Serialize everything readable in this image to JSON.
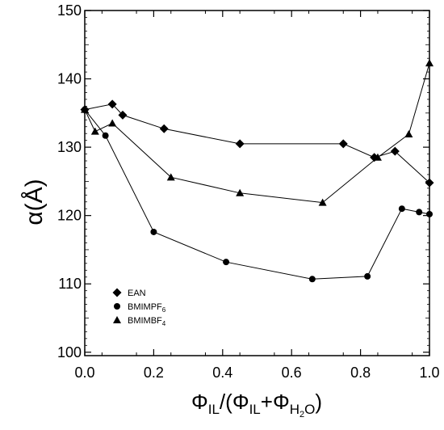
{
  "chart_data": {
    "type": "line",
    "title": "",
    "ylabel": "α(Å)",
    "xlabel_parts": {
      "phi": "Φ",
      "il": "IL",
      "open": "/(",
      "plus": "+",
      "h2o_h": "H",
      "h2o_2": "2",
      "h2o_o": "O",
      "close": ")"
    },
    "xlim": [
      0.0,
      1.0
    ],
    "ylim": [
      99.5,
      150
    ],
    "x_ticks": [
      "0.0",
      "0.2",
      "0.4",
      "0.6",
      "0.8",
      "1.0"
    ],
    "x_tick_values": [
      0.0,
      0.2,
      0.4,
      0.6,
      0.8,
      1.0
    ],
    "y_ticks": [
      "100",
      "110",
      "120",
      "130",
      "140",
      "150"
    ],
    "y_tick_values": [
      100,
      110,
      120,
      130,
      140,
      150
    ],
    "grid": false,
    "legend_position": "bottom-left",
    "series": [
      {
        "name": "EAN",
        "name_main": "EAN",
        "name_sub": "",
        "marker": "diamond",
        "x": [
          0.0,
          0.08,
          0.11,
          0.23,
          0.45,
          0.75,
          0.84,
          0.9,
          1.0
        ],
        "y": [
          135.5,
          136.3,
          134.7,
          132.7,
          130.5,
          130.5,
          128.5,
          129.4,
          124.8
        ]
      },
      {
        "name": "BMIMPF6",
        "name_main": "BMIMPF",
        "name_sub": "6",
        "marker": "circle",
        "x": [
          0.0,
          0.06,
          0.2,
          0.41,
          0.66,
          0.82,
          0.92,
          0.97,
          1.0
        ],
        "y": [
          135.5,
          131.7,
          117.6,
          113.2,
          110.7,
          111.1,
          121.0,
          120.5,
          120.2
        ]
      },
      {
        "name": "BMIMBF4",
        "name_main": "BMIMBF",
        "name_sub": "4",
        "marker": "triangle",
        "x": [
          0.0,
          0.03,
          0.08,
          0.25,
          0.45,
          0.69,
          0.85,
          0.94,
          1.0
        ],
        "y": [
          135.5,
          132.3,
          133.5,
          125.6,
          123.3,
          121.9,
          128.5,
          131.9,
          142.3
        ]
      }
    ]
  }
}
